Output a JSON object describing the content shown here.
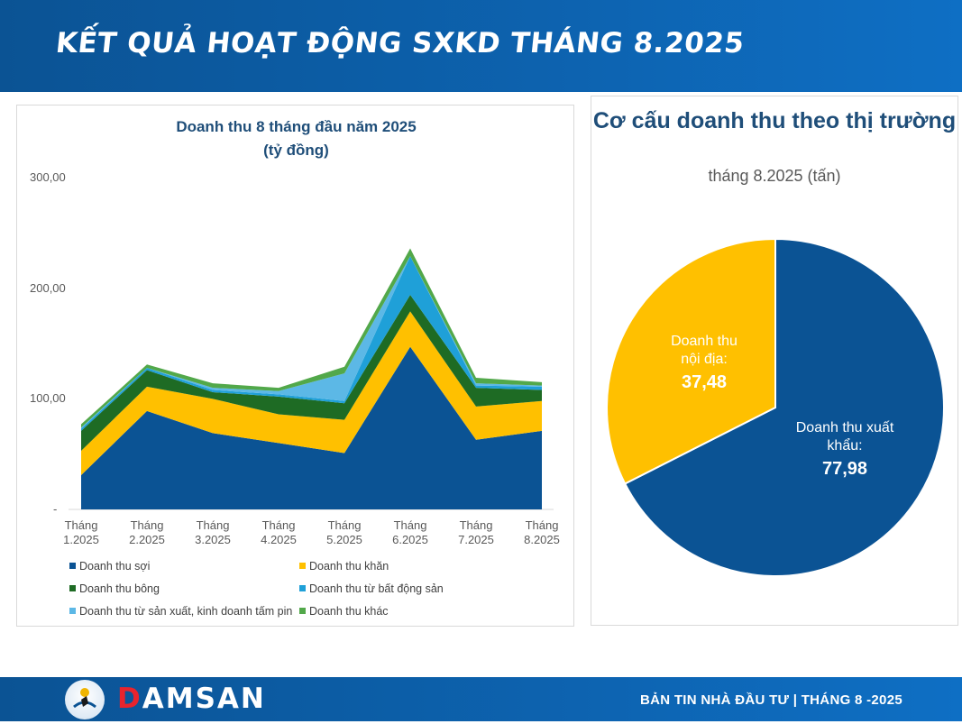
{
  "header": {
    "title": "KẾT QUẢ HOẠT ĐỘNG SXKD THÁNG 8.2025"
  },
  "footer": {
    "brand_d": "D",
    "brand_rest": "AMSAN",
    "bulletin": "BẢN TIN NHÀ ĐẦU TƯ  |  THÁNG 8 -2025"
  },
  "colors": {
    "header": "#0b5394",
    "yarn": "#0b5394",
    "towel": "#ffc000",
    "cotton": "#1e6b24",
    "real_estate": "#1fa0d8",
    "panel": "#5cb8e6",
    "other": "#52a84a",
    "export": "#0b5394",
    "domestic": "#ffc000",
    "brand_red": "#e8242d"
  },
  "chart_data": [
    {
      "type": "area",
      "stacked": true,
      "title": "Doanh thu 8 tháng đầu năm 2025",
      "subtitle": "(tỷ đồng)",
      "categories": [
        "Tháng 1.2025",
        "Tháng 2.2025",
        "Tháng 3.2025",
        "Tháng 4.2025",
        "Tháng 5.2025",
        "Tháng 6.2025",
        "Tháng 7.2025",
        "Tháng 8.2025"
      ],
      "categories_wrapped": [
        [
          "Tháng",
          "1.2025"
        ],
        [
          "Tháng",
          "2.2025"
        ],
        [
          "Tháng",
          "3.2025"
        ],
        [
          "Tháng",
          "4.2025"
        ],
        [
          "Tháng",
          "5.2025"
        ],
        [
          "Tháng",
          "6.2025"
        ],
        [
          "Tháng",
          "7.2025"
        ],
        [
          "Tháng",
          "8.2025"
        ]
      ],
      "yticks": [
        "-",
        "100,00",
        "200,00",
        "300,00"
      ],
      "ylim": [
        0,
        300
      ],
      "legend_position": "bottom",
      "series": [
        {
          "name": "Doanh thu sợi",
          "color": "#0b5394",
          "values": [
            31,
            89,
            69,
            60,
            51,
            147,
            63,
            71
          ]
        },
        {
          "name": "Doanh thu khăn",
          "color": "#ffc000",
          "values": [
            22,
            22,
            31,
            26,
            30,
            32,
            30,
            27
          ]
        },
        {
          "name": "Doanh thu bông",
          "color": "#1e6b24",
          "values": [
            18,
            15,
            6,
            16,
            15,
            15,
            17,
            10
          ]
        },
        {
          "name": "Doanh thu từ bất động sản",
          "color": "#1fa0d8",
          "values": [
            2,
            2,
            2,
            2,
            2,
            35,
            2,
            3
          ]
        },
        {
          "name": "Doanh thu từ sản xuất, kinh doanh tấm pin",
          "color": "#5cb8e6",
          "values": [
            1,
            0,
            2,
            3,
            25,
            0,
            2,
            1
          ]
        },
        {
          "name": "Doanh thu khác",
          "color": "#52a84a",
          "values": [
            3,
            3,
            4,
            3,
            6,
            7,
            5,
            3
          ]
        }
      ]
    },
    {
      "type": "pie",
      "title": "Cơ cấu doanh thu theo thị trường",
      "subtitle": "tháng 8.2025 (tấn)",
      "slices": [
        {
          "label": "Doanh thu xuất khẩu:",
          "value": 77.98,
          "value_text": "77,98",
          "color": "#0b5394",
          "text_color": "#ffffff"
        },
        {
          "label": "Doanh thu nội địa:",
          "value": 37.48,
          "value_text": "37,48",
          "color": "#ffc000",
          "text_color": "#ffffff"
        }
      ]
    }
  ]
}
